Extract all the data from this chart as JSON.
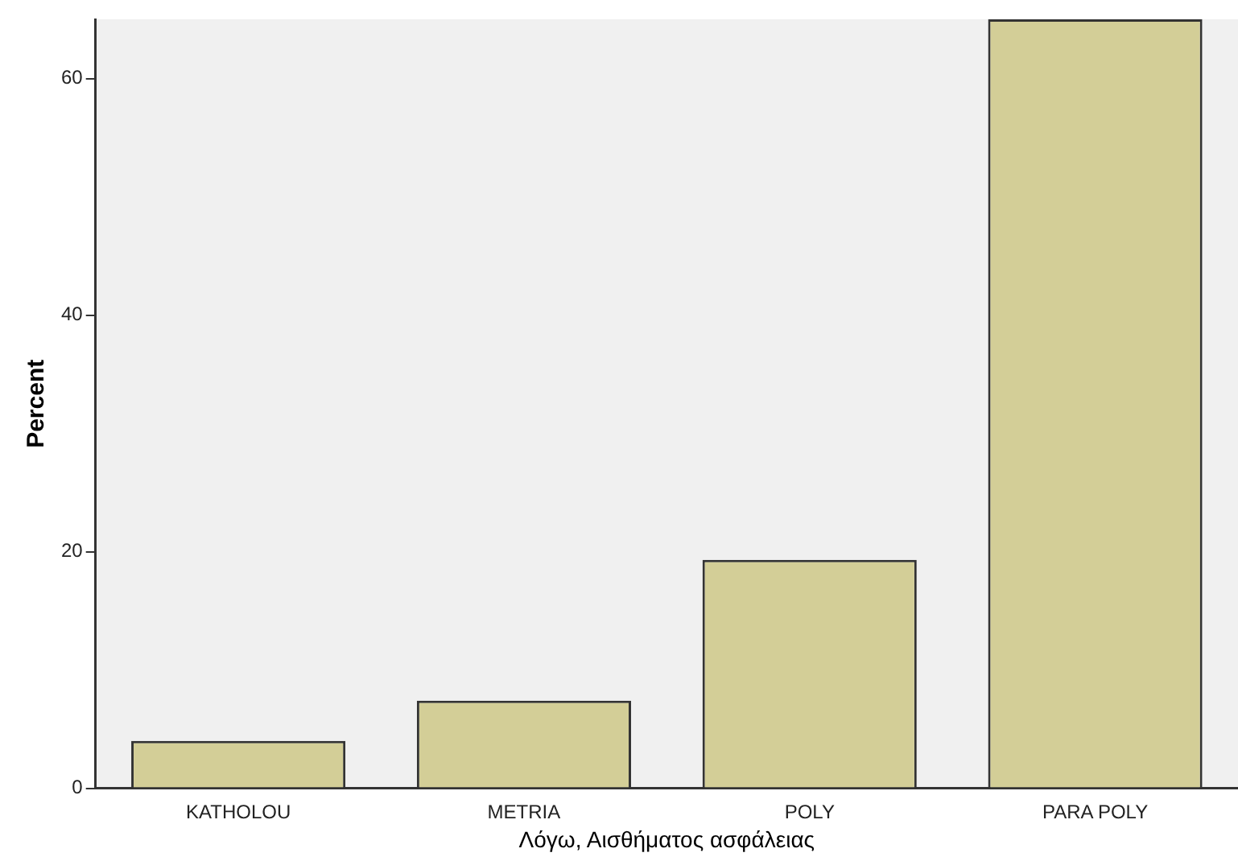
{
  "chart_data": {
    "type": "bar",
    "xlabel": "Λόγω, Αισθήματος ασφάλειας",
    "ylabel": "Percent",
    "categories": [
      "KATHOLOU",
      "METRIA",
      "POLY",
      "PARA POLY"
    ],
    "values": [
      4.0,
      7.4,
      19.3,
      65
    ],
    "color": "#d3ce97",
    "ylim": [
      0,
      65
    ],
    "yticks": [
      0,
      20,
      40,
      60
    ],
    "grid": false,
    "legend": false
  }
}
